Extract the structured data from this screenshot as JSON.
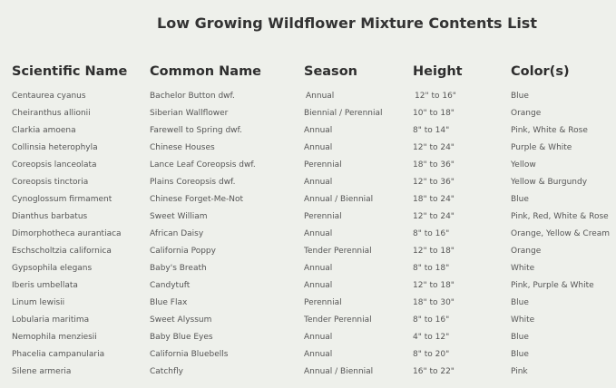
{
  "title": "Low Growing Wildflower Mixture Contents List",
  "columns": [
    "Scientific Name",
    "Common Name",
    "Season",
    "Height",
    "Color(s)"
  ],
  "rows": [
    [
      "Centaurea cyanus",
      "Bachelor Button dwf.",
      "Annual",
      "12\" to 16\"",
      "Blue"
    ],
    [
      "Cheiranthus allionii",
      "Siberian Wallflower",
      "Biennial / Perennial",
      "10\" to 18\"",
      "Orange"
    ],
    [
      "Clarkia amoena",
      "Farewell to Spring dwf.",
      "Annual",
      "8\" to 14\"",
      "Pink, White & Rose"
    ],
    [
      "Collinsia heterophyla",
      "Chinese Houses",
      "Annual",
      "12\" to 24\"",
      "Purple & White"
    ],
    [
      "Coreopsis lanceolata",
      "Lance Leaf Coreopsis dwf.",
      "Perennial",
      "18\" to 36\"",
      "Yellow"
    ],
    [
      "Coreopsis tinctoria",
      "Plains Coreopsis dwf.",
      "Annual",
      "12\" to 36\"",
      "Yellow & Burgundy"
    ],
    [
      "Cynoglossum firmament",
      "Chinese Forget-Me-Not",
      "Annual / Biennial",
      "18\" to 24\"",
      "Blue"
    ],
    [
      "Dianthus barbatus",
      "Sweet William",
      "Perennial",
      "12\" to 24\"",
      "Pink, Red, White & Rose"
    ],
    [
      "Dimorphotheca aurantiaca",
      "African Daisy",
      "Annual",
      "8\" to 16\"",
      "Orange, Yellow & Cream"
    ],
    [
      "Eschscholtzia californica",
      "California Poppy",
      "Tender Perennial",
      "12\" to 18\"",
      "Orange"
    ],
    [
      "Gypsophila elegans",
      "Baby's Breath",
      "Annual",
      "8\" to 18\"",
      "White"
    ],
    [
      "Iberis umbellata",
      "Candytuft",
      "Annual",
      "12\" to 18\"",
      "Pink, Purple & White"
    ],
    [
      "Linum lewisii",
      "Blue Flax",
      "Perennial",
      "18\" to 30\"",
      "Blue"
    ],
    [
      "Lobularia maritima",
      "Sweet Alyssum",
      "Tender Perennial",
      "8\" to 16\"",
      "White"
    ],
    [
      "Nemophila menziesii",
      "Baby Blue Eyes",
      "Annual",
      "4\" to 12\"",
      "Blue"
    ],
    [
      "Phacelia campanularia",
      "California Bluebells",
      "Annual",
      "8\" to 20\"",
      "Blue"
    ],
    [
      "Silene armeria",
      "Catchfly",
      "Annual / Biennial",
      "16\" to 22\"",
      "Pink"
    ]
  ]
}
